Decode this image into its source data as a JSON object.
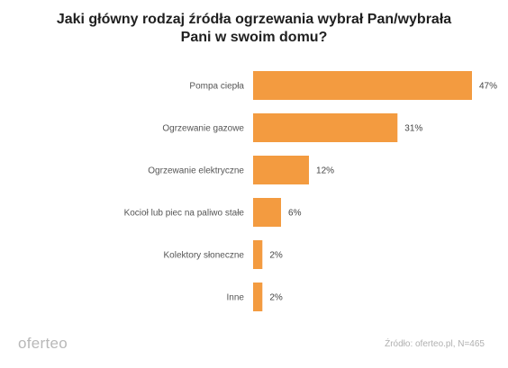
{
  "title": {
    "line1": "Jaki główny rodzaj źródła ogrzewania wybrał Pan/wybrała",
    "line2": "Pani w swoim domu?"
  },
  "chart_data": {
    "type": "bar",
    "orientation": "horizontal",
    "categories": [
      "Pompa ciepła",
      "Ogrzewanie gazowe",
      "Ogrzewanie elektryczne",
      "Kocioł lub piec na paliwo stałe",
      "Kolektory słoneczne",
      "Inne"
    ],
    "values": [
      47,
      31,
      12,
      6,
      2,
      2
    ],
    "value_labels": [
      "47%",
      "31%",
      "12%",
      "6%",
      "2%",
      "2%"
    ],
    "unit": "%",
    "xlim": [
      0,
      47
    ],
    "grid": false,
    "bar_color": "#F39B40"
  },
  "footer": {
    "logo": "oferteo",
    "source": "Źródło: oferteo.pl, N=465"
  }
}
